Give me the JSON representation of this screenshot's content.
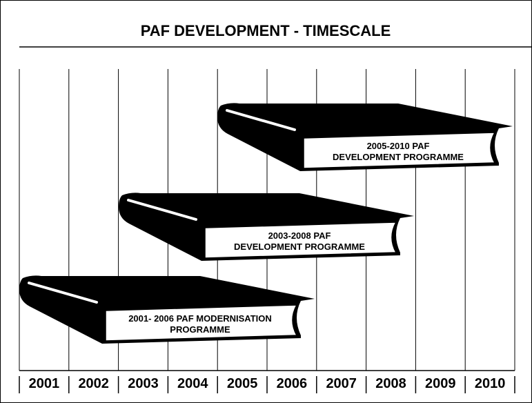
{
  "title": "PAF DEVELOPMENT - TIMESCALE",
  "years": [
    "2001",
    "2002",
    "2003",
    "2004",
    "2005",
    "2006",
    "2007",
    "2008",
    "2009",
    "2010"
  ],
  "books": [
    {
      "lines": [
        "2001- 2006 PAF MODERNISATION",
        "PROGRAMME"
      ]
    },
    {
      "lines": [
        "2003-2008 PAF",
        "DEVELOPMENT PROGRAMME"
      ]
    },
    {
      "lines": [
        "2005-2010 PAF",
        "DEVELOPMENT PROGRAMME"
      ]
    }
  ]
}
